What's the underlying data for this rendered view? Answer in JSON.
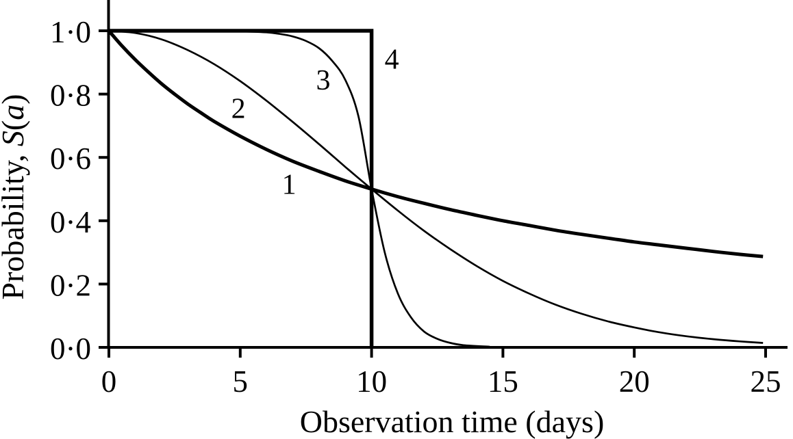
{
  "figure": {
    "background": "#ffffff",
    "ink": "#000000"
  },
  "chart_data": {
    "type": "line",
    "title": "",
    "xlabel": "Observation time (days)",
    "ylabel": "Probability, S(a)",
    "ylabel_parts": [
      {
        "text": "Probability, ",
        "italic": false
      },
      {
        "text": "S",
        "italic": true
      },
      {
        "text": "(",
        "italic": false
      },
      {
        "text": "a",
        "italic": true
      },
      {
        "text": ")",
        "italic": false
      }
    ],
    "xlim": [
      0,
      25
    ],
    "ylim": [
      0.0,
      1.0
    ],
    "grid": false,
    "legend_position": "none",
    "xticks": [
      0,
      5,
      10,
      15,
      20,
      25
    ],
    "xtick_labels": [
      "0",
      "5",
      "10",
      "15",
      "20",
      "25"
    ],
    "yticks": [
      0.0,
      0.2,
      0.4,
      0.6,
      0.8,
      1.0
    ],
    "ytick_labels": [
      "0·0",
      "0·2",
      "0·4",
      "0·6",
      "0·8",
      "1·0"
    ],
    "common_median_point": {
      "x": 10,
      "y": 0.5
    },
    "series": [
      {
        "label": "1",
        "style": "thick",
        "stroke_width": 5,
        "smooth": true,
        "annotation": {
          "x": 6.86,
          "y": 0.515
        },
        "x": [
          0,
          0.5,
          1,
          1.5,
          2,
          2.5,
          3,
          3.5,
          4,
          5,
          6,
          7,
          8,
          9,
          10,
          11,
          12,
          13,
          14,
          15,
          16,
          17,
          18,
          19,
          20,
          21,
          22,
          23,
          24,
          24.9
        ],
        "y": [
          1.0,
          0.952,
          0.909,
          0.87,
          0.833,
          0.8,
          0.769,
          0.741,
          0.714,
          0.667,
          0.625,
          0.588,
          0.556,
          0.526,
          0.5,
          0.476,
          0.455,
          0.435,
          0.417,
          0.4,
          0.385,
          0.37,
          0.357,
          0.345,
          0.333,
          0.323,
          0.313,
          0.303,
          0.294,
          0.287
        ]
      },
      {
        "label": "2",
        "style": "thin",
        "stroke_width": 2.7,
        "smooth": true,
        "annotation": {
          "x": 4.93,
          "y": 0.755
        },
        "x": [
          0,
          1,
          2,
          3,
          4,
          5,
          6,
          7,
          8,
          9,
          10,
          11,
          12,
          13,
          14,
          15,
          16,
          17,
          18,
          19,
          20,
          21,
          22,
          23,
          24,
          24.9
        ],
        "y": [
          1.0,
          0.993,
          0.973,
          0.939,
          0.895,
          0.841,
          0.779,
          0.712,
          0.642,
          0.57,
          0.5,
          0.432,
          0.368,
          0.31,
          0.257,
          0.21,
          0.17,
          0.135,
          0.106,
          0.082,
          0.063,
          0.047,
          0.035,
          0.026,
          0.019,
          0.014
        ]
      },
      {
        "label": "3",
        "style": "thin",
        "stroke_width": 2.7,
        "smooth": true,
        "annotation": {
          "x": 8.16,
          "y": 0.845
        },
        "x": [
          0,
          2,
          4,
          5,
          6,
          6.5,
          7,
          7.5,
          8,
          8.5,
          9,
          9.5,
          10,
          10.5,
          11,
          11.5,
          12,
          12.5,
          13,
          13.5,
          14.5
        ],
        "y": [
          1.0,
          1.0,
          0.999,
          0.998,
          0.995,
          0.99,
          0.982,
          0.968,
          0.945,
          0.905,
          0.845,
          0.73,
          0.5,
          0.3,
          0.17,
          0.095,
          0.05,
          0.027,
          0.014,
          0.007,
          0.002
        ]
      },
      {
        "label": "4",
        "style": "thick",
        "stroke_width": 5.5,
        "smooth": false,
        "annotation": {
          "x": 10.77,
          "y": 0.91
        },
        "x": [
          0,
          10,
          10
        ],
        "y": [
          1.0,
          1.0,
          0.0
        ]
      }
    ]
  }
}
